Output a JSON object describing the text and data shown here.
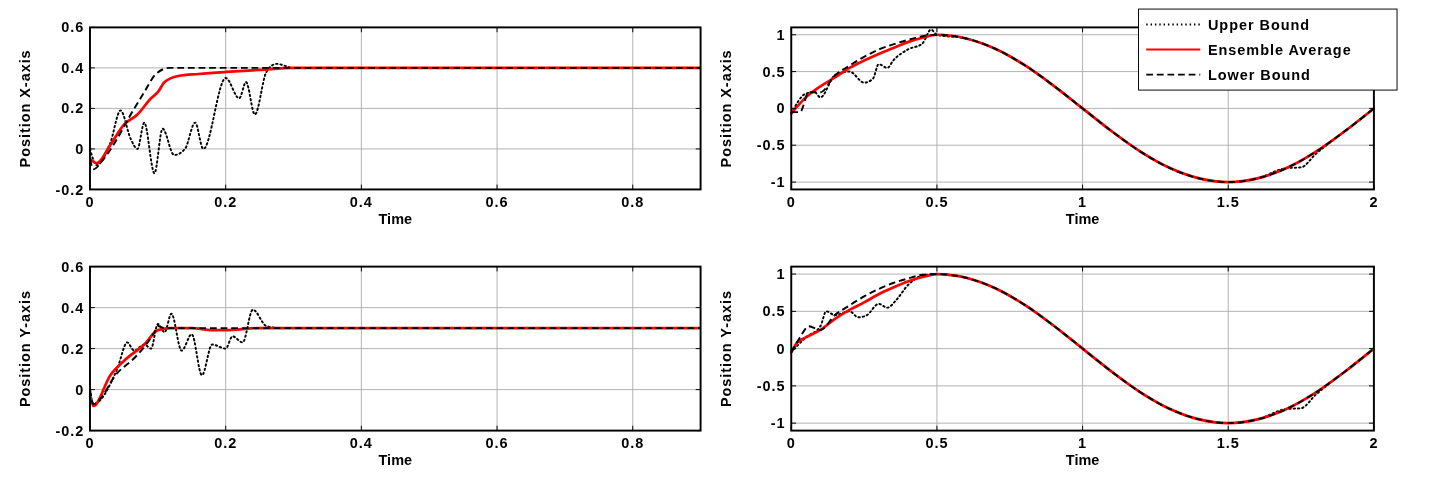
{
  "chart_data": [
    {
      "type": "line",
      "xlabel": "Time",
      "ylabel": "Position X-axis",
      "xlim": [
        0,
        0.9
      ],
      "ylim": [
        -0.2,
        0.6
      ],
      "xticks": [
        0,
        0.2,
        0.4,
        0.6,
        0.8
      ],
      "yticks": [
        -0.2,
        0,
        0.2,
        0.4,
        0.6
      ],
      "grid": true,
      "legend": false,
      "series": [
        {
          "color": "#000000",
          "line_style": "dotted",
          "x": [
            0,
            0.01,
            0.03,
            0.045,
            0.06,
            0.07,
            0.08,
            0.095,
            0.107,
            0.124,
            0.14,
            0.155,
            0.167,
            0.2,
            0.22,
            0.23,
            0.243,
            0.26,
            0.275,
            0.3,
            0.9
          ],
          "values": [
            0,
            -0.08,
            0.03,
            0.19,
            0.05,
            0,
            0.13,
            -0.12,
            0.1,
            -0.03,
            0,
            0.13,
            0,
            0.35,
            0.25,
            0.33,
            0.17,
            0.38,
            0.42,
            0.4,
            0.4
          ]
        },
        {
          "color": "#ff0000",
          "line_style": "solid",
          "x": [
            0,
            0.01,
            0.03,
            0.05,
            0.07,
            0.09,
            0.1,
            0.11,
            0.13,
            0.16,
            0.2,
            0.25,
            0.3,
            0.9
          ],
          "values": [
            -0.05,
            -0.07,
            0.02,
            0.12,
            0.17,
            0.25,
            0.28,
            0.33,
            0.36,
            0.37,
            0.38,
            0.39,
            0.4,
            0.4
          ]
        },
        {
          "color": "#000000",
          "line_style": "dashed",
          "x": [
            0,
            0.005,
            0.02,
            0.04,
            0.06,
            0.08,
            0.097,
            0.117,
            0.2,
            0.9
          ],
          "values": [
            -0.05,
            -0.1,
            -0.05,
            0.05,
            0.17,
            0.28,
            0.37,
            0.4,
            0.4,
            0.4
          ]
        }
      ]
    },
    {
      "type": "line",
      "xlabel": "Time",
      "ylabel": "Position X-axis",
      "xlim": [
        0,
        2
      ],
      "ylim": [
        -1.1,
        1.1
      ],
      "xticks": [
        0,
        0.5,
        1,
        1.5,
        2
      ],
      "yticks": [
        -1,
        -0.5,
        0,
        0.5,
        1
      ],
      "grid": true,
      "legend": "top right",
      "series": [
        {
          "name": "Upper Bound",
          "color": "#000000",
          "line_style": "dotted",
          "x": [
            0,
            0.05,
            0.08,
            0.1,
            0.15,
            0.2,
            0.25,
            0.28,
            0.3,
            0.33,
            0.35,
            0.4,
            0.45,
            0.48,
            0.5,
            0.6,
            0.7,
            0.8,
            0.9,
            1,
            1.1,
            1.2,
            1.3,
            1.4,
            1.5,
            1.6,
            1.7,
            1.75,
            1.8,
            1.9,
            2
          ],
          "values": [
            -0.07,
            0.2,
            0.22,
            0.15,
            0.45,
            0.5,
            0.35,
            0.4,
            0.6,
            0.55,
            0.65,
            0.8,
            0.88,
            1.07,
            1,
            0.95,
            0.81,
            0.59,
            0.31,
            0,
            -0.31,
            -0.59,
            -0.81,
            -0.95,
            -1,
            -0.95,
            -0.81,
            -0.8,
            -0.62,
            -0.31,
            0
          ]
        },
        {
          "name": "Ensemble Average",
          "color": "#ff0000",
          "line_style": "solid",
          "x": [
            0,
            0.05,
            0.1,
            0.15,
            0.2,
            0.25,
            0.3,
            0.35,
            0.4,
            0.45,
            0.5,
            0.6,
            0.7,
            0.8,
            0.9,
            1,
            1.1,
            1.2,
            1.3,
            1.4,
            1.5,
            1.6,
            1.7,
            1.8,
            1.9,
            2
          ],
          "values": [
            -0.07,
            0.15,
            0.3,
            0.42,
            0.55,
            0.65,
            0.74,
            0.82,
            0.9,
            0.96,
            1,
            0.95,
            0.81,
            0.59,
            0.31,
            0,
            -0.31,
            -0.59,
            -0.81,
            -0.95,
            -1,
            -0.95,
            -0.81,
            -0.59,
            -0.31,
            0
          ]
        },
        {
          "name": "Lower Bound",
          "color": "#000000",
          "line_style": "dashed",
          "x": [
            0,
            0.03,
            0.06,
            0.1,
            0.15,
            0.2,
            0.25,
            0.3,
            0.35,
            0.4,
            0.45,
            0.5,
            0.6,
            0.7,
            0.8,
            0.9,
            1,
            1.1,
            1.2,
            1.3,
            1.4,
            1.5,
            1.6,
            1.7,
            1.8,
            1.9,
            2
          ],
          "values": [
            -0.05,
            -0.05,
            0.22,
            0.22,
            0.45,
            0.58,
            0.7,
            0.8,
            0.87,
            0.93,
            0.98,
            1,
            0.95,
            0.81,
            0.59,
            0.31,
            0,
            -0.31,
            -0.59,
            -0.81,
            -0.95,
            -1,
            -0.95,
            -0.81,
            -0.59,
            -0.31,
            0
          ]
        }
      ]
    },
    {
      "type": "line",
      "xlabel": "Time",
      "ylabel": "Position Y-axis",
      "xlim": [
        0,
        0.9
      ],
      "ylim": [
        -0.2,
        0.6
      ],
      "xticks": [
        0,
        0.2,
        0.4,
        0.6,
        0.8
      ],
      "yticks": [
        -0.2,
        0,
        0.2,
        0.4,
        0.6
      ],
      "grid": true,
      "legend": false,
      "series": [
        {
          "color": "#000000",
          "line_style": "dotted",
          "x": [
            0,
            0.005,
            0.04,
            0.055,
            0.065,
            0.08,
            0.09,
            0.1,
            0.11,
            0.12,
            0.135,
            0.15,
            0.165,
            0.18,
            0.2,
            0.21,
            0.225,
            0.24,
            0.26,
            0.28,
            0.9
          ],
          "values": [
            0,
            -0.07,
            0.1,
            0.23,
            0.19,
            0.22,
            0.2,
            0.32,
            0.28,
            0.37,
            0.19,
            0.27,
            0.07,
            0.22,
            0.2,
            0.26,
            0.23,
            0.39,
            0.31,
            0.3,
            0.3
          ]
        },
        {
          "color": "#ff0000",
          "line_style": "solid",
          "x": [
            0,
            0.005,
            0.03,
            0.05,
            0.08,
            0.1,
            0.12,
            0.15,
            0.18,
            0.2,
            0.25,
            0.9
          ],
          "values": [
            -0.03,
            -0.08,
            0.07,
            0.14,
            0.22,
            0.29,
            0.3,
            0.3,
            0.29,
            0.29,
            0.3,
            0.3
          ]
        },
        {
          "color": "#000000",
          "line_style": "dashed",
          "x": [
            0,
            0.005,
            0.04,
            0.07,
            0.095,
            0.1,
            0.11,
            0.9
          ],
          "values": [
            0,
            -0.07,
            0.08,
            0.17,
            0.28,
            0.31,
            0.3,
            0.3
          ]
        }
      ]
    },
    {
      "type": "line",
      "xlabel": "Time",
      "ylabel": "Position Y-axis",
      "xlim": [
        0,
        2
      ],
      "ylim": [
        -1.1,
        1.1
      ],
      "xticks": [
        0,
        0.5,
        1,
        1.5,
        2
      ],
      "yticks": [
        -1,
        -0.5,
        0,
        0.5,
        1
      ],
      "grid": true,
      "legend": false,
      "series": [
        {
          "color": "#000000",
          "line_style": "dotted",
          "x": [
            0,
            0.05,
            0.1,
            0.12,
            0.15,
            0.2,
            0.23,
            0.26,
            0.3,
            0.33,
            0.36,
            0.4,
            0.45,
            0.5,
            0.6,
            0.7,
            0.8,
            0.9,
            1,
            1.1,
            1.2,
            1.3,
            1.4,
            1.5,
            1.6,
            1.7,
            1.75,
            1.8,
            1.9,
            2
          ],
          "values": [
            -0.05,
            0.15,
            0.3,
            0.5,
            0.45,
            0.5,
            0.42,
            0.45,
            0.6,
            0.55,
            0.65,
            0.85,
            0.98,
            1,
            0.95,
            0.81,
            0.59,
            0.31,
            0,
            -0.31,
            -0.59,
            -0.81,
            -0.95,
            -1,
            -0.95,
            -0.81,
            -0.8,
            -0.62,
            -0.31,
            0
          ]
        },
        {
          "color": "#ff0000",
          "line_style": "solid",
          "x": [
            0,
            0.02,
            0.05,
            0.1,
            0.15,
            0.2,
            0.25,
            0.3,
            0.35,
            0.4,
            0.45,
            0.5,
            0.6,
            0.7,
            0.8,
            0.9,
            1,
            1.1,
            1.2,
            1.3,
            1.4,
            1.5,
            1.6,
            1.7,
            1.8,
            1.9,
            2
          ],
          "values": [
            -0.05,
            0.08,
            0.15,
            0.25,
            0.4,
            0.52,
            0.62,
            0.73,
            0.82,
            0.9,
            0.96,
            1,
            0.95,
            0.81,
            0.59,
            0.31,
            0,
            -0.31,
            -0.59,
            -0.81,
            -0.95,
            -1,
            -0.95,
            -0.81,
            -0.59,
            -0.31,
            0
          ]
        },
        {
          "color": "#000000",
          "line_style": "dashed",
          "x": [
            0,
            0.03,
            0.06,
            0.1,
            0.15,
            0.2,
            0.25,
            0.3,
            0.35,
            0.4,
            0.45,
            0.5,
            0.6,
            0.7,
            0.8,
            0.9,
            1,
            1.1,
            1.2,
            1.3,
            1.4,
            1.5,
            1.6,
            1.7,
            1.8,
            1.9,
            2
          ],
          "values": [
            -0.05,
            0.15,
            0.3,
            0.25,
            0.45,
            0.58,
            0.7,
            0.8,
            0.88,
            0.94,
            0.99,
            1,
            0.95,
            0.81,
            0.59,
            0.31,
            0,
            -0.31,
            -0.59,
            -0.81,
            -0.95,
            -1,
            -0.95,
            -0.81,
            -0.59,
            -0.31,
            0
          ]
        }
      ]
    }
  ]
}
